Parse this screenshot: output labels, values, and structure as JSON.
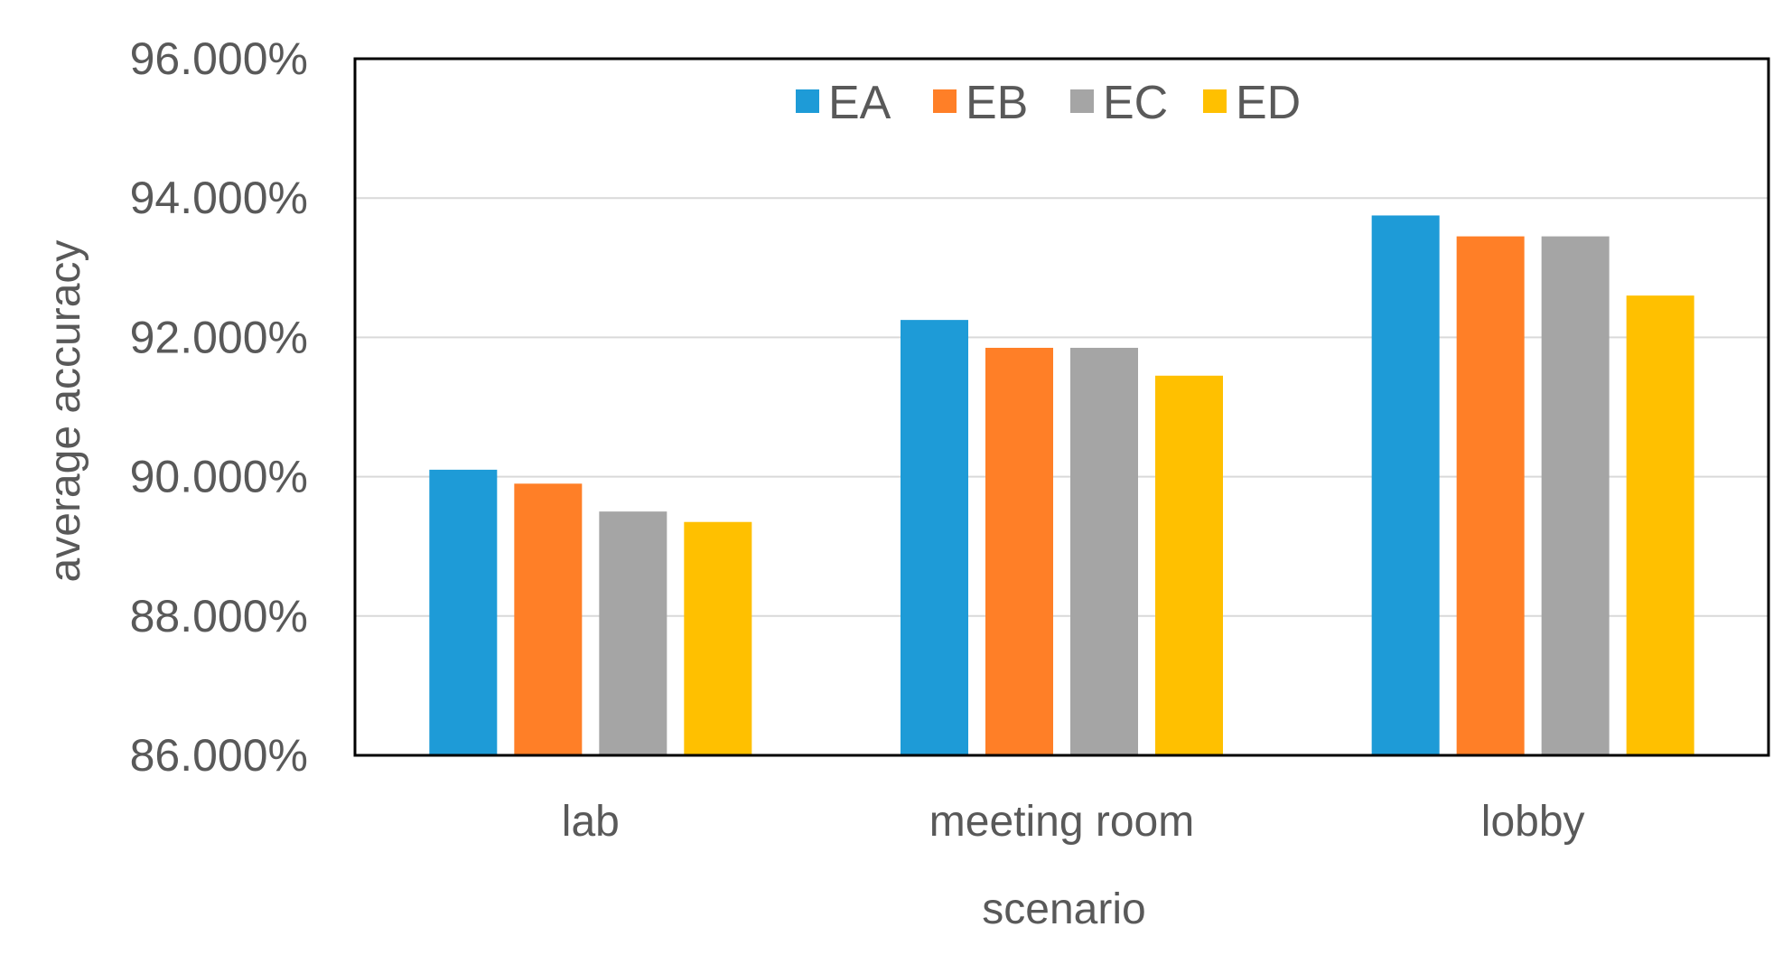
{
  "chart_data": {
    "type": "bar",
    "title": "",
    "xlabel": "scenario",
    "ylabel": "average accuracy",
    "categories": [
      "lab",
      "meeting room",
      "lobby"
    ],
    "series": [
      {
        "name": "EA",
        "color": "#1E9BD7",
        "values": [
          90.1,
          92.25,
          93.75
        ]
      },
      {
        "name": "EB",
        "color": "#FF7F27",
        "values": [
          89.9,
          91.85,
          93.45
        ]
      },
      {
        "name": "EC",
        "color": "#A5A5A5",
        "values": [
          89.5,
          91.85,
          93.45
        ]
      },
      {
        "name": "ED",
        "color": "#FFC000",
        "values": [
          89.35,
          91.45,
          92.6
        ]
      }
    ],
    "ylim": [
      86,
      96
    ],
    "yticks": [
      86,
      88,
      90,
      92,
      94,
      96
    ],
    "ytick_labels": [
      "86.000%",
      "88.000%",
      "90.000%",
      "92.000%",
      "94.000%",
      "96.000%"
    ],
    "grid": true,
    "legend_position": "top-center"
  }
}
